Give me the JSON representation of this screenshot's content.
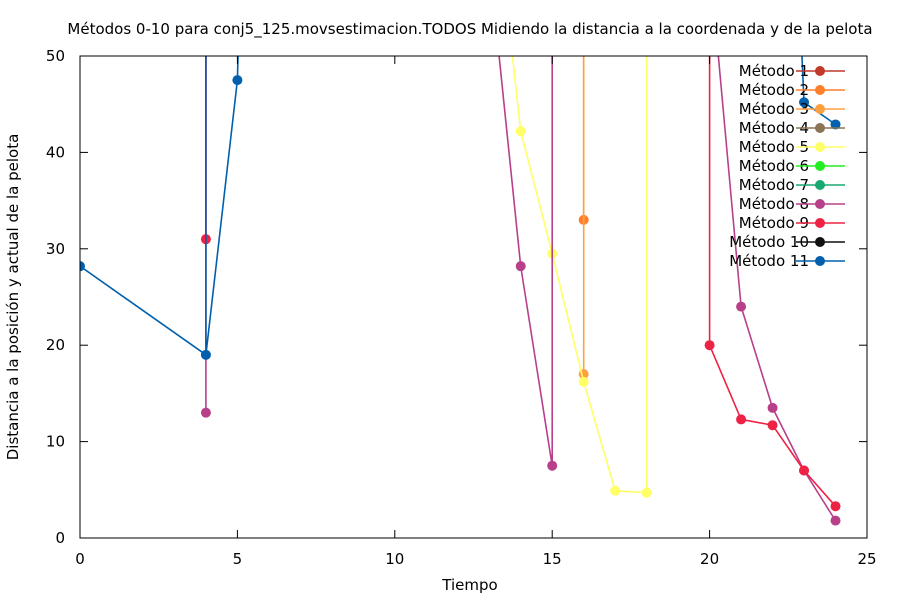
{
  "chart_data": {
    "type": "line",
    "title": "Métodos 0-10 para conj5_125.movsestimacion.TODOS Midiendo la distancia a la coordenada y de la pelota",
    "xlabel": "Tiempo",
    "ylabel": "Distancia a la posición y actual de la pelota",
    "xlim": [
      0,
      25
    ],
    "ylim": [
      0,
      50
    ],
    "xticks": [
      0,
      5,
      10,
      15,
      20,
      25
    ],
    "yticks": [
      0,
      10,
      20,
      30,
      40,
      50
    ],
    "grid": false,
    "legend_position": "top-right",
    "series": [
      {
        "name": "Método 1",
        "color": "#c0392b",
        "points": []
      },
      {
        "name": "Método 2",
        "color": "#ff7f2a",
        "points": [
          [
            16,
            33
          ],
          [
            16,
            60
          ]
        ]
      },
      {
        "name": "Método 3",
        "color": "#ffa040",
        "points": [
          [
            16,
            17
          ],
          [
            16,
            60
          ]
        ]
      },
      {
        "name": "Método 4",
        "color": "#8b7355",
        "points": []
      },
      {
        "name": "Método 5",
        "color": "#ffff66",
        "points": [
          [
            13.4,
            60
          ],
          [
            14,
            42.2
          ],
          [
            15,
            29.5
          ],
          [
            16,
            16.2
          ],
          [
            17,
            4.9
          ],
          [
            18,
            4.7
          ],
          [
            18,
            60
          ]
        ]
      },
      {
        "name": "Método 6",
        "color": "#22ee22",
        "points": []
      },
      {
        "name": "Método 7",
        "color": "#1aa872",
        "points": []
      },
      {
        "name": "Método 8",
        "color": "#b8408a",
        "points": [
          [
            4,
            13
          ],
          [
            4,
            60
          ],
          [
            13,
            60
          ],
          [
            14,
            28.2
          ],
          [
            15,
            7.5
          ],
          [
            15,
            60
          ],
          [
            20,
            60
          ],
          [
            21,
            24
          ],
          [
            22,
            13.5
          ],
          [
            23,
            7
          ],
          [
            24,
            1.8
          ]
        ]
      },
      {
        "name": "Método 9",
        "color": "#ee2244",
        "points": [
          [
            4,
            31
          ],
          [
            4,
            60
          ],
          [
            20,
            60
          ],
          [
            20,
            20
          ],
          [
            21,
            12.3
          ],
          [
            22,
            11.7
          ],
          [
            23,
            7
          ],
          [
            24,
            3.3
          ]
        ]
      },
      {
        "name": "Método 10",
        "color": "#111111",
        "points": []
      },
      {
        "name": "Método 11",
        "color": "#0060ad",
        "points": [
          [
            0,
            28.2
          ],
          [
            4,
            19
          ],
          [
            4,
            60
          ],
          [
            4,
            19
          ],
          [
            5,
            47.5
          ],
          [
            5.1,
            60
          ],
          [
            22.8,
            60
          ],
          [
            23,
            45.2
          ],
          [
            24,
            42.9
          ]
        ]
      }
    ]
  }
}
